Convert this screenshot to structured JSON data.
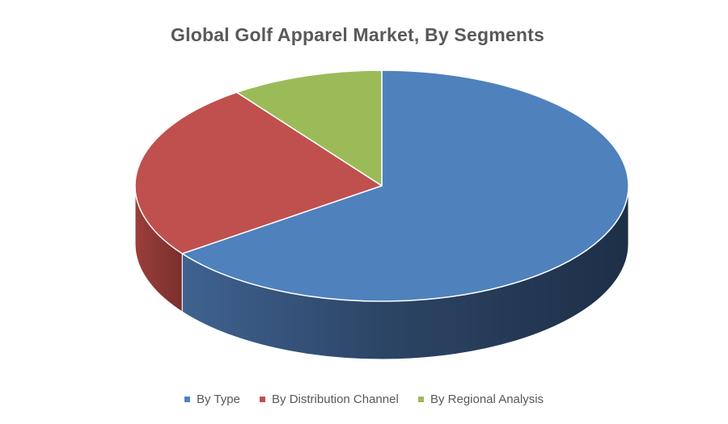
{
  "chart_data": {
    "type": "pie",
    "title": "Global Golf Apparel Market, By Segments",
    "categories": [
      "By Type",
      "By Distribution Channel",
      "By Regional Analysis"
    ],
    "values": [
      65,
      25,
      10
    ],
    "colors": [
      "#4f81bd",
      "#c0504d",
      "#9bbb59"
    ],
    "legend": "bottom",
    "style": "3d"
  }
}
